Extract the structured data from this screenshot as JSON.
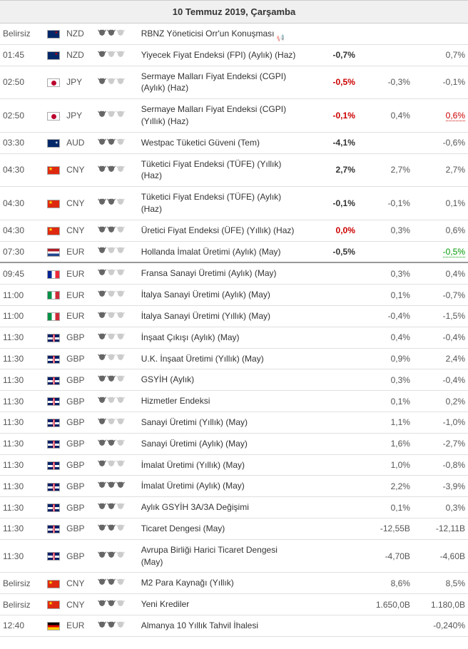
{
  "date_header": "10 Temmuz 2019, Çarşamba",
  "colors": {
    "header_bg": "#f0f0f0",
    "border": "#e0e0e0",
    "divider": "#999999",
    "text": "#333333",
    "muted": "#555555",
    "negative": "#cc0000",
    "positive_green": "#009900",
    "bull_active": "#666666",
    "bull_inactive": "#cccccc"
  },
  "rows": [
    {
      "time": "Belirsiz",
      "flag": "nzd",
      "cur": "NZD",
      "impact": 2,
      "event": "RBNZ Yöneticisi Orr'un Konuşması",
      "speech": true,
      "actual": "",
      "actual_class": "",
      "forecast": "",
      "previous": "",
      "prev_class": ""
    },
    {
      "time": "01:45",
      "flag": "nzd",
      "cur": "NZD",
      "impact": 1,
      "event": "Yiyecek Fiyat Endeksi (FPI) (Aylık) (Haz)",
      "actual": "-0,7%",
      "actual_class": "pos",
      "forecast": "",
      "previous": "0,7%",
      "prev_class": ""
    },
    {
      "time": "02:50",
      "flag": "jpy",
      "cur": "JPY",
      "impact": 1,
      "event": "Sermaye Malları Fiyat Endeksi (CGPI) (Aylık) (Haz)",
      "actual": "-0,5%",
      "actual_class": "neg",
      "forecast": "-0,3%",
      "previous": "-0,1%",
      "prev_class": ""
    },
    {
      "time": "02:50",
      "flag": "jpy",
      "cur": "JPY",
      "impact": 1,
      "event": "Sermaye Malları Fiyat Endeksi (CGPI) (Yıllık) (Haz)",
      "actual": "-0,1%",
      "actual_class": "neg",
      "forecast": "0,4%",
      "previous": "0,6%",
      "prev_class": "prev-neg"
    },
    {
      "time": "03:30",
      "flag": "aud",
      "cur": "AUD",
      "impact": 2,
      "event": "Westpac Tüketici Güveni (Tem)",
      "actual": "-4,1%",
      "actual_class": "pos",
      "forecast": "",
      "previous": "-0,6%",
      "prev_class": ""
    },
    {
      "time": "04:30",
      "flag": "cny",
      "cur": "CNY",
      "impact": 2,
      "event": "Tüketici Fiyat Endeksi (TÜFE) (Yıllık) (Haz)",
      "actual": "2,7%",
      "actual_class": "pos",
      "forecast": "2,7%",
      "previous": "2,7%",
      "prev_class": ""
    },
    {
      "time": "04:30",
      "flag": "cny",
      "cur": "CNY",
      "impact": 2,
      "event": "Tüketici Fiyat Endeksi (TÜFE) (Aylık) (Haz)",
      "actual": "-0,1%",
      "actual_class": "pos",
      "forecast": "-0,1%",
      "previous": "0,1%",
      "prev_class": ""
    },
    {
      "time": "04:30",
      "flag": "cny",
      "cur": "CNY",
      "impact": 2,
      "event": "Üretici Fiyat Endeksi (ÜFE) (Yıllık) (Haz)",
      "actual": "0,0%",
      "actual_class": "neg",
      "forecast": "0,3%",
      "previous": "0,6%",
      "prev_class": ""
    },
    {
      "time": "07:30",
      "flag": "eur-nl",
      "cur": "EUR",
      "impact": 1,
      "event": "Hollanda İmalat Üretimi (Aylık) (May)",
      "actual": "-0,5%",
      "actual_class": "pos",
      "forecast": "",
      "previous": "-0,5%",
      "prev_class": "prev-green",
      "divider": true
    },
    {
      "time": "09:45",
      "flag": "eur-fr",
      "cur": "EUR",
      "impact": 1,
      "event": "Fransa Sanayi Üretimi (Aylık) (May)",
      "actual": "",
      "actual_class": "",
      "forecast": "0,3%",
      "previous": "0,4%",
      "prev_class": ""
    },
    {
      "time": "11:00",
      "flag": "eur-it",
      "cur": "EUR",
      "impact": 1,
      "event": "İtalya Sanayi Üretimi (Aylık) (May)",
      "actual": "",
      "actual_class": "",
      "forecast": "0,1%",
      "previous": "-0,7%",
      "prev_class": ""
    },
    {
      "time": "11:00",
      "flag": "eur-it",
      "cur": "EUR",
      "impact": 1,
      "event": "İtalya Sanayi Üretimi (Yıllık) (May)",
      "actual": "",
      "actual_class": "",
      "forecast": "-0,4%",
      "previous": "-1,5%",
      "prev_class": ""
    },
    {
      "time": "11:30",
      "flag": "gbp",
      "cur": "GBP",
      "impact": 1,
      "event": "İnşaat Çıkışı (Aylık) (May)",
      "actual": "",
      "actual_class": "",
      "forecast": "0,4%",
      "previous": "-0,4%",
      "prev_class": ""
    },
    {
      "time": "11:30",
      "flag": "gbp",
      "cur": "GBP",
      "impact": 1,
      "event": "U.K. İnşaat Üretimi (Yıllık) (May)",
      "actual": "",
      "actual_class": "",
      "forecast": "0,9%",
      "previous": "2,4%",
      "prev_class": ""
    },
    {
      "time": "11:30",
      "flag": "gbp",
      "cur": "GBP",
      "impact": 2,
      "event": "GSYİH (Aylık)",
      "actual": "",
      "actual_class": "",
      "forecast": "0,3%",
      "previous": "-0,4%",
      "prev_class": ""
    },
    {
      "time": "11:30",
      "flag": "gbp",
      "cur": "GBP",
      "impact": 1,
      "event": "Hizmetler Endeksi",
      "actual": "",
      "actual_class": "",
      "forecast": "0,1%",
      "previous": "0,2%",
      "prev_class": ""
    },
    {
      "time": "11:30",
      "flag": "gbp",
      "cur": "GBP",
      "impact": 1,
      "event": "Sanayi Üretimi (Yıllık) (May)",
      "actual": "",
      "actual_class": "",
      "forecast": "1,1%",
      "previous": "-1,0%",
      "prev_class": ""
    },
    {
      "time": "11:30",
      "flag": "gbp",
      "cur": "GBP",
      "impact": 2,
      "event": "Sanayi Üretimi (Aylık) (May)",
      "actual": "",
      "actual_class": "",
      "forecast": "1,6%",
      "previous": "-2,7%",
      "prev_class": ""
    },
    {
      "time": "11:30",
      "flag": "gbp",
      "cur": "GBP",
      "impact": 1,
      "event": "İmalat Üretimi (Yıllık) (May)",
      "actual": "",
      "actual_class": "",
      "forecast": "1,0%",
      "previous": "-0,8%",
      "prev_class": ""
    },
    {
      "time": "11:30",
      "flag": "gbp",
      "cur": "GBP",
      "impact": 3,
      "event": "İmalat Üretimi (Aylık) (May)",
      "actual": "",
      "actual_class": "",
      "forecast": "2,2%",
      "previous": "-3,9%",
      "prev_class": ""
    },
    {
      "time": "11:30",
      "flag": "gbp",
      "cur": "GBP",
      "impact": 2,
      "event": "Aylık GSYİH 3A/3A Değişimi",
      "actual": "",
      "actual_class": "",
      "forecast": "0,1%",
      "previous": "0,3%",
      "prev_class": ""
    },
    {
      "time": "11:30",
      "flag": "gbp",
      "cur": "GBP",
      "impact": 2,
      "event": "Ticaret Dengesi (May)",
      "actual": "",
      "actual_class": "",
      "forecast": "-12,55B",
      "previous": "-12,11B",
      "prev_class": ""
    },
    {
      "time": "11:30",
      "flag": "gbp",
      "cur": "GBP",
      "impact": 2,
      "event": "Avrupa Birliği Harici Ticaret Dengesi (May)",
      "actual": "",
      "actual_class": "",
      "forecast": "-4,70B",
      "previous": "-4,60B",
      "prev_class": ""
    },
    {
      "time": "Belirsiz",
      "flag": "cny",
      "cur": "CNY",
      "impact": 2,
      "event": "M2 Para Kaynağı (Yıllık)",
      "actual": "",
      "actual_class": "",
      "forecast": "8,6%",
      "previous": "8,5%",
      "prev_class": ""
    },
    {
      "time": "Belirsiz",
      "flag": "cny",
      "cur": "CNY",
      "impact": 2,
      "event": "Yeni Krediler",
      "actual": "",
      "actual_class": "",
      "forecast": "1.650,0B",
      "previous": "1.180,0B",
      "prev_class": ""
    },
    {
      "time": "12:40",
      "flag": "eur-de",
      "cur": "EUR",
      "impact": 2,
      "event": "Almanya 10 Yıllık Tahvil İhalesi",
      "actual": "",
      "actual_class": "",
      "forecast": "",
      "previous": "-0,240%",
      "prev_class": ""
    }
  ]
}
